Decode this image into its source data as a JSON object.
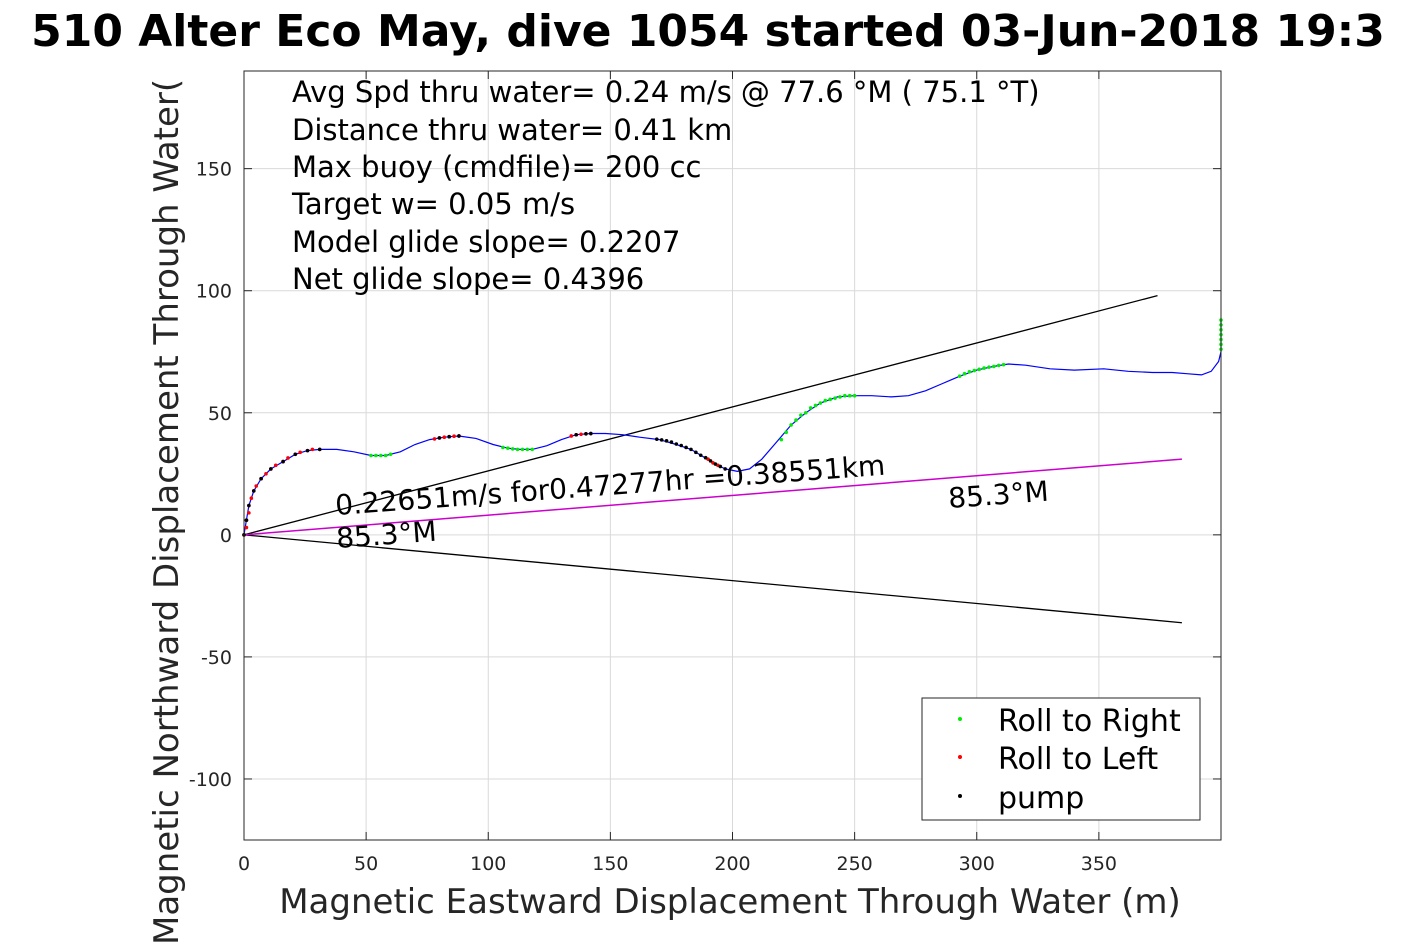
{
  "chart_data": {
    "type": "line",
    "title": "510 Alter Eco May, dive 1054 started 03-Jun-2018 19:3",
    "xlabel": "Magnetic Eastward Displacement Through Water (m)",
    "ylabel": "Magnetic Northward Displacement Through Water(",
    "xlim": [
      0,
      400
    ],
    "ylim": [
      -125,
      190
    ],
    "xticks": [
      0,
      50,
      100,
      150,
      200,
      250,
      300,
      350
    ],
    "yticks": [
      -100,
      -50,
      0,
      50,
      100,
      150
    ],
    "xtick_labels": [
      "0",
      "50",
      "100",
      "150",
      "200",
      "250",
      "300",
      "350"
    ],
    "ytick_labels": [
      "-100",
      "-50",
      "0",
      "50",
      "100",
      "150"
    ],
    "grid": true,
    "info_lines": [
      "Avg Spd thru water=  0.24 m/s @  77.6 °M ( 75.1 °T)",
      "Distance thru water=  0.41 km",
      "Max buoy (cmdfile)= 200 cc",
      "Target w= 0.05 m/s",
      "Model glide slope= 0.2207",
      "Net glide slope= 0.4396"
    ],
    "annotations": {
      "speed": "0.22651m/s for0.47277hr =0.38551km",
      "heading_start": "85.3°M",
      "heading_end": "85.3°M"
    },
    "colors": {
      "track": "#0000ff",
      "roll_right": "#00ee00",
      "roll_left": "#ff0000",
      "pump": "#000000",
      "heading_line": "#cc00cc",
      "envelope": "#000000"
    },
    "lines": {
      "upper_envelope": [
        [
          0,
          0
        ],
        [
          374,
          98
        ]
      ],
      "lower_envelope": [
        [
          0,
          0
        ],
        [
          384,
          -36
        ]
      ],
      "heading": [
        [
          0,
          0
        ],
        [
          384,
          31
        ]
      ]
    },
    "track": [
      [
        0,
        0
      ],
      [
        1,
        6
      ],
      [
        2,
        12
      ],
      [
        4,
        18
      ],
      [
        7,
        23
      ],
      [
        11,
        27
      ],
      [
        16,
        30
      ],
      [
        21,
        33
      ],
      [
        26,
        34.5
      ],
      [
        31,
        35
      ],
      [
        38,
        35
      ],
      [
        45,
        34
      ],
      [
        52,
        32.5
      ],
      [
        58,
        32.5
      ],
      [
        64,
        34
      ],
      [
        70,
        37
      ],
      [
        76,
        39
      ],
      [
        82,
        40
      ],
      [
        88,
        40.5
      ],
      [
        95,
        39.5
      ],
      [
        102,
        37
      ],
      [
        108,
        35.5
      ],
      [
        113,
        35
      ],
      [
        118,
        35
      ],
      [
        124,
        36.5
      ],
      [
        130,
        39
      ],
      [
        136,
        41
      ],
      [
        142,
        41.5
      ],
      [
        148,
        41.5
      ],
      [
        155,
        41
      ],
      [
        162,
        40
      ],
      [
        170,
        39
      ],
      [
        177,
        37
      ],
      [
        183,
        35
      ],
      [
        188,
        32
      ],
      [
        193,
        29
      ],
      [
        197,
        27
      ],
      [
        202,
        26
      ],
      [
        207,
        27
      ],
      [
        212,
        31
      ],
      [
        218,
        38
      ],
      [
        224,
        45
      ],
      [
        230,
        50
      ],
      [
        236,
        54
      ],
      [
        243,
        56.5
      ],
      [
        250,
        57
      ],
      [
        257,
        57
      ],
      [
        265,
        56.5
      ],
      [
        272,
        57
      ],
      [
        279,
        59
      ],
      [
        286,
        62
      ],
      [
        293,
        65
      ],
      [
        300,
        67.5
      ],
      [
        307,
        69
      ],
      [
        313,
        70
      ],
      [
        320,
        69.5
      ],
      [
        330,
        68
      ],
      [
        340,
        67.5
      ],
      [
        352,
        68
      ],
      [
        362,
        67
      ],
      [
        372,
        66.5
      ],
      [
        380,
        66.5
      ],
      [
        386,
        66
      ],
      [
        392,
        65.5
      ],
      [
        396,
        67
      ],
      [
        399,
        71
      ],
      [
        400,
        75
      ],
      [
        400,
        80
      ],
      [
        400,
        84
      ],
      [
        400,
        88
      ]
    ],
    "roll_right": [
      [
        52,
        32.5
      ],
      [
        54,
        32.5
      ],
      [
        56,
        32.5
      ],
      [
        58,
        32.5
      ],
      [
        60,
        33
      ],
      [
        106,
        35.8
      ],
      [
        108,
        35.5
      ],
      [
        110,
        35.2
      ],
      [
        112,
        35
      ],
      [
        114,
        35
      ],
      [
        116,
        35
      ],
      [
        118,
        35
      ],
      [
        220,
        39
      ],
      [
        222,
        42
      ],
      [
        224,
        45
      ],
      [
        226,
        47
      ],
      [
        228,
        49
      ],
      [
        230,
        50
      ],
      [
        232,
        52
      ],
      [
        234,
        53
      ],
      [
        236,
        54
      ],
      [
        238,
        55
      ],
      [
        240,
        55.5
      ],
      [
        242,
        56
      ],
      [
        244,
        56.5
      ],
      [
        246,
        57
      ],
      [
        248,
        57
      ],
      [
        250,
        57
      ],
      [
        293,
        65
      ],
      [
        295,
        66
      ],
      [
        297,
        66.8
      ],
      [
        299,
        67.3
      ],
      [
        301,
        67.8
      ],
      [
        303,
        68.3
      ],
      [
        305,
        68.7
      ],
      [
        307,
        69
      ],
      [
        309,
        69.4
      ],
      [
        311,
        69.7
      ],
      [
        400,
        76
      ],
      [
        400,
        78
      ],
      [
        400,
        80
      ],
      [
        400,
        82
      ],
      [
        400,
        84
      ],
      [
        400,
        86
      ],
      [
        400,
        88
      ]
    ],
    "roll_left": [
      [
        0,
        0
      ],
      [
        1,
        3
      ],
      [
        1,
        6
      ],
      [
        2,
        9
      ],
      [
        2,
        12
      ],
      [
        3,
        15
      ],
      [
        4,
        18
      ],
      [
        5,
        20
      ],
      [
        7,
        23
      ],
      [
        9,
        25
      ],
      [
        11,
        27
      ],
      [
        13,
        28.5
      ],
      [
        16,
        30
      ],
      [
        18,
        31.5
      ],
      [
        21,
        33
      ],
      [
        23,
        33.8
      ],
      [
        26,
        34.5
      ],
      [
        28,
        35
      ],
      [
        31,
        35
      ],
      [
        78,
        39.3
      ],
      [
        80,
        39.7
      ],
      [
        82,
        40
      ],
      [
        84,
        40.2
      ],
      [
        86,
        40.4
      ],
      [
        88,
        40.5
      ],
      [
        134,
        40.5
      ],
      [
        136,
        41
      ],
      [
        138,
        41.2
      ],
      [
        140,
        41.4
      ],
      [
        142,
        41.5
      ],
      [
        190,
        31
      ],
      [
        192,
        29.5
      ],
      [
        194,
        28.5
      ]
    ],
    "pump": [
      [
        0,
        0
      ],
      [
        1,
        6
      ],
      [
        2,
        12
      ],
      [
        4,
        18
      ],
      [
        7,
        23
      ],
      [
        11,
        27
      ],
      [
        16,
        30
      ],
      [
        21,
        33
      ],
      [
        26,
        34.5
      ],
      [
        31,
        35
      ],
      [
        80,
        39.7
      ],
      [
        84,
        40.2
      ],
      [
        88,
        40.5
      ],
      [
        136,
        41
      ],
      [
        140,
        41.4
      ],
      [
        142,
        41.5
      ],
      [
        169,
        39.2
      ],
      [
        171,
        38.9
      ],
      [
        173,
        38.5
      ],
      [
        175,
        38
      ],
      [
        177,
        37.2
      ],
      [
        179,
        36.6
      ],
      [
        181,
        35.8
      ],
      [
        183,
        35
      ],
      [
        185,
        33.8
      ],
      [
        187,
        32.6
      ],
      [
        189,
        31.6
      ],
      [
        191,
        30.3
      ],
      [
        193,
        29
      ],
      [
        195,
        28
      ],
      [
        197,
        27
      ]
    ],
    "legend": {
      "placement": "bottom-right",
      "entries": [
        "Roll to Right",
        "Roll to Left",
        "pump"
      ]
    }
  }
}
